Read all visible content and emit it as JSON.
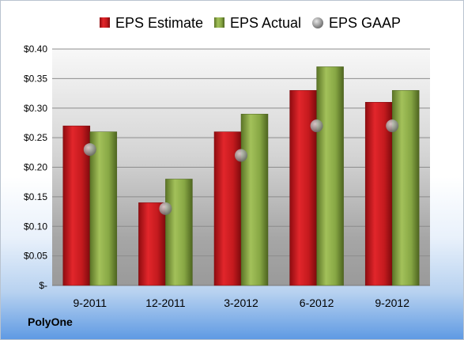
{
  "chart_data": {
    "type": "bar",
    "title": "",
    "xlabel": "",
    "ylabel": "",
    "categories": [
      "9-2011",
      "12-2011",
      "3-2012",
      "6-2012",
      "9-2012"
    ],
    "series": [
      {
        "name": "EPS Estimate",
        "kind": "bar",
        "color": "#c0161b",
        "values": [
          0.27,
          0.14,
          0.26,
          0.33,
          0.31
        ]
      },
      {
        "name": "EPS Actual",
        "kind": "bar",
        "color": "#7c9a3a",
        "values": [
          0.26,
          0.18,
          0.29,
          0.37,
          0.33
        ]
      },
      {
        "name": "EPS GAAP",
        "kind": "marker",
        "color": "#9aa2aa",
        "values": [
          0.23,
          0.13,
          0.22,
          0.27,
          0.27
        ]
      }
    ],
    "ylim": [
      0,
      0.4
    ],
    "ytick_labels": [
      "$-",
      "$0.05",
      "$0.10",
      "$0.15",
      "$0.20",
      "$0.25",
      "$0.30",
      "$0.35",
      "$0.40"
    ],
    "grid": true,
    "legend_position": "top"
  },
  "company": "PolyOne"
}
